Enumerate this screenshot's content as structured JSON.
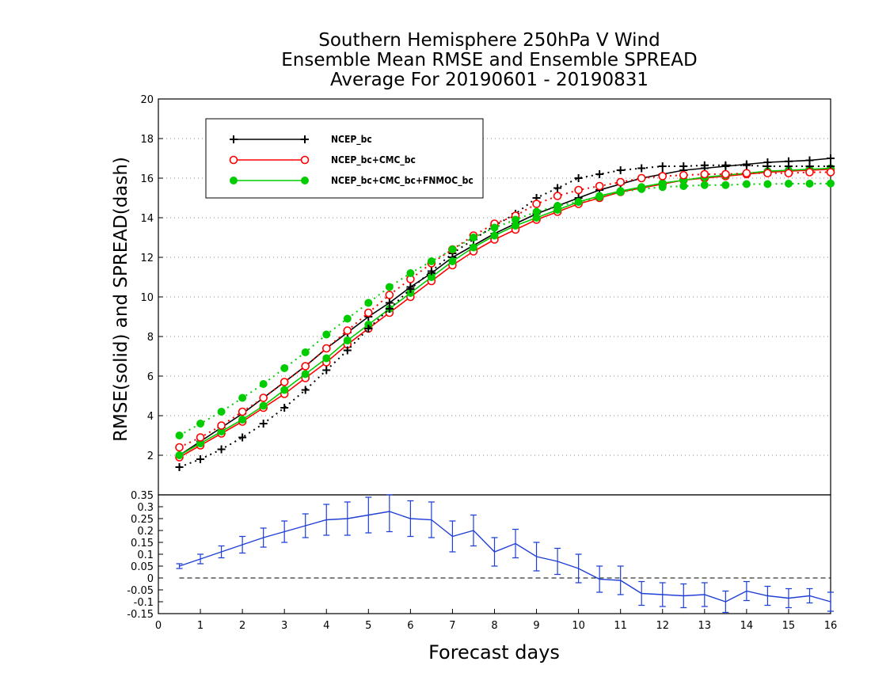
{
  "chart_data": [
    {
      "type": "line",
      "title": [
        "Southern Hemisphere 250hPa V Wind",
        "Ensemble Mean RMSE and Ensemble SPREAD",
        "Average For 20190601 - 20190831"
      ],
      "ylabel": "RMSE(solid) and SPREAD(dash)",
      "ylim": [
        0,
        20
      ],
      "yticks": [
        "2",
        "4",
        "6",
        "8",
        "10",
        "12",
        "14",
        "16",
        "18",
        "20"
      ],
      "grid": true,
      "legend_position": "top-left",
      "x": [
        0.5,
        1,
        1.5,
        2,
        2.5,
        3,
        3.5,
        4,
        4.5,
        5,
        5.5,
        6,
        6.5,
        7,
        7.5,
        8,
        8.5,
        9,
        9.5,
        10,
        10.5,
        11,
        11.5,
        12,
        12.5,
        13,
        13.5,
        14,
        14.5,
        15,
        15.5,
        16
      ],
      "series": [
        {
          "name": "NCEP_bc",
          "style": "solid",
          "marker": "plus",
          "color": "#000000",
          "values": [
            2.0,
            2.7,
            3.4,
            4.1,
            4.9,
            5.7,
            6.5,
            7.4,
            8.2,
            9.0,
            9.7,
            10.5,
            11.2,
            12.0,
            12.6,
            13.2,
            13.7,
            14.2,
            14.6,
            15.0,
            15.4,
            15.7,
            16.0,
            16.2,
            16.4,
            16.5,
            16.6,
            16.7,
            16.8,
            16.85,
            16.9,
            17.0
          ]
        },
        {
          "name": "NCEP_bc",
          "style": "dash",
          "marker": "plus",
          "color": "#000000",
          "values": [
            1.4,
            1.8,
            2.3,
            2.9,
            3.6,
            4.4,
            5.3,
            6.3,
            7.3,
            8.4,
            9.4,
            10.4,
            11.3,
            12.2,
            12.9,
            13.6,
            14.2,
            15.0,
            15.5,
            16.0,
            16.2,
            16.4,
            16.5,
            16.6,
            16.6,
            16.65,
            16.65,
            16.65,
            16.6,
            16.6,
            16.6,
            16.6
          ]
        },
        {
          "name": "NCEP_bc+CMC_bc",
          "style": "solid",
          "marker": "open-circle",
          "color": "#ff0000",
          "values": [
            1.9,
            2.5,
            3.1,
            3.7,
            4.4,
            5.1,
            5.9,
            6.7,
            7.6,
            8.4,
            9.2,
            10.0,
            10.8,
            11.6,
            12.3,
            12.9,
            13.4,
            13.9,
            14.3,
            14.7,
            15.0,
            15.3,
            15.5,
            15.7,
            15.9,
            16.0,
            16.1,
            16.2,
            16.3,
            16.35,
            16.4,
            16.45
          ]
        },
        {
          "name": "NCEP_bc+CMC_bc",
          "style": "dash",
          "marker": "open-circle",
          "color": "#ff0000",
          "values": [
            2.4,
            2.9,
            3.5,
            4.2,
            4.9,
            5.7,
            6.5,
            7.4,
            8.3,
            9.2,
            10.1,
            10.9,
            11.7,
            12.4,
            13.1,
            13.7,
            14.1,
            14.7,
            15.1,
            15.4,
            15.6,
            15.8,
            16.0,
            16.1,
            16.15,
            16.2,
            16.2,
            16.25,
            16.25,
            16.25,
            16.3,
            16.3
          ]
        },
        {
          "name": "NCEP_bc+CMC_bc+FNMOC_bc",
          "style": "solid",
          "marker": "filled-circle",
          "color": "#00cc00",
          "values": [
            2.0,
            2.6,
            3.2,
            3.8,
            4.5,
            5.3,
            6.1,
            6.9,
            7.8,
            8.6,
            9.4,
            10.2,
            11.0,
            11.8,
            12.5,
            13.1,
            13.6,
            14.0,
            14.4,
            14.8,
            15.1,
            15.35,
            15.55,
            15.75,
            15.9,
            16.05,
            16.15,
            16.25,
            16.35,
            16.4,
            16.45,
            16.5
          ]
        },
        {
          "name": "NCEP_bc+CMC_bc+FNMOC_bc",
          "style": "dash",
          "marker": "filled-circle",
          "color": "#00cc00",
          "values": [
            3.0,
            3.6,
            4.2,
            4.9,
            5.6,
            6.4,
            7.2,
            8.1,
            8.9,
            9.7,
            10.5,
            11.2,
            11.8,
            12.4,
            13.0,
            13.5,
            13.9,
            14.3,
            14.6,
            14.8,
            15.05,
            15.3,
            15.45,
            15.55,
            15.6,
            15.65,
            15.65,
            15.7,
            15.7,
            15.72,
            15.72,
            15.73
          ]
        }
      ]
    },
    {
      "type": "line",
      "xlabel": "Forecast days",
      "xlim": [
        0,
        16
      ],
      "xticks": [
        "0",
        "1",
        "2",
        "3",
        "4",
        "5",
        "6",
        "7",
        "8",
        "9",
        "10",
        "11",
        "12",
        "13",
        "14",
        "15",
        "16"
      ],
      "ylim": [
        -0.15,
        0.35
      ],
      "yticks": [
        "-0.15",
        "-0.1",
        "-0.05",
        "0",
        "0.05",
        "0.1",
        "0.15",
        "0.2",
        "0.25",
        "0.3",
        "0.35"
      ],
      "zero_line": "dashed",
      "series": [
        {
          "name": "",
          "color": "#1f3fd6",
          "marker": "error-bar",
          "x": [
            0.5,
            1,
            1.5,
            2,
            2.5,
            3,
            3.5,
            4,
            4.5,
            5,
            5.5,
            6,
            6.5,
            7,
            7.5,
            8,
            8.5,
            9,
            9.5,
            10,
            10.5,
            11,
            11.5,
            12,
            12.5,
            13,
            13.5,
            14,
            14.5,
            15,
            15.5,
            16
          ],
          "values": [
            0.05,
            0.08,
            0.11,
            0.14,
            0.17,
            0.195,
            0.22,
            0.245,
            0.25,
            0.265,
            0.28,
            0.25,
            0.245,
            0.175,
            0.2,
            0.11,
            0.145,
            0.09,
            0.07,
            0.04,
            -0.005,
            -0.01,
            -0.065,
            -0.07,
            -0.075,
            -0.07,
            -0.1,
            -0.055,
            -0.075,
            -0.085,
            -0.075,
            -0.1
          ],
          "error": [
            0.01,
            0.02,
            0.025,
            0.035,
            0.04,
            0.045,
            0.05,
            0.065,
            0.07,
            0.075,
            0.085,
            0.075,
            0.075,
            0.065,
            0.065,
            0.06,
            0.06,
            0.06,
            0.055,
            0.06,
            0.055,
            0.06,
            0.05,
            0.05,
            0.05,
            0.05,
            0.045,
            0.04,
            0.04,
            0.04,
            0.03,
            0.04
          ]
        }
      ]
    }
  ]
}
